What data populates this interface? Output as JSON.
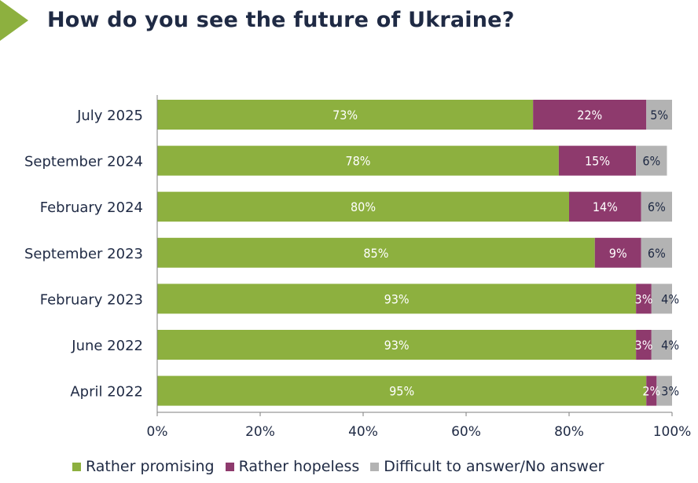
{
  "title": "How do you see the future of Ukraine?",
  "colors": {
    "promising": "#8db03f",
    "hopeless": "#8e3a6d",
    "difficult": "#b3b3b3"
  },
  "chart_data": {
    "type": "bar",
    "orientation": "horizontal",
    "stacked": true,
    "categories": [
      "July 2025",
      "September 2024",
      "February 2024",
      "September 2023",
      "February 2023",
      "June 2022",
      "April 2022"
    ],
    "series": [
      {
        "name": "Rather promising",
        "values": [
          73,
          78,
          80,
          85,
          93,
          93,
          95
        ],
        "color": "#8db03f"
      },
      {
        "name": "Rather hopeless",
        "values": [
          22,
          15,
          14,
          9,
          3,
          3,
          2
        ],
        "color": "#8e3a6d"
      },
      {
        "name": "Difficult to answer/No answer",
        "values": [
          5,
          6,
          6,
          6,
          4,
          4,
          3
        ],
        "color": "#b3b3b3"
      }
    ],
    "value_labels": [
      [
        "73%",
        "22%",
        "5%"
      ],
      [
        "78%",
        "15%",
        "6%"
      ],
      [
        "80%",
        "14%",
        "6%"
      ],
      [
        "85%",
        "9%",
        "6%"
      ],
      [
        "93%",
        "3%",
        "4%"
      ],
      [
        "93%",
        "3%",
        "4%"
      ],
      [
        "95%",
        "2%",
        "3%"
      ]
    ],
    "x_ticks": [
      "0%",
      "20%",
      "40%",
      "60%",
      "80%",
      "100%"
    ],
    "xlim": [
      0,
      100
    ],
    "legend_position": "bottom",
    "grid": false
  }
}
